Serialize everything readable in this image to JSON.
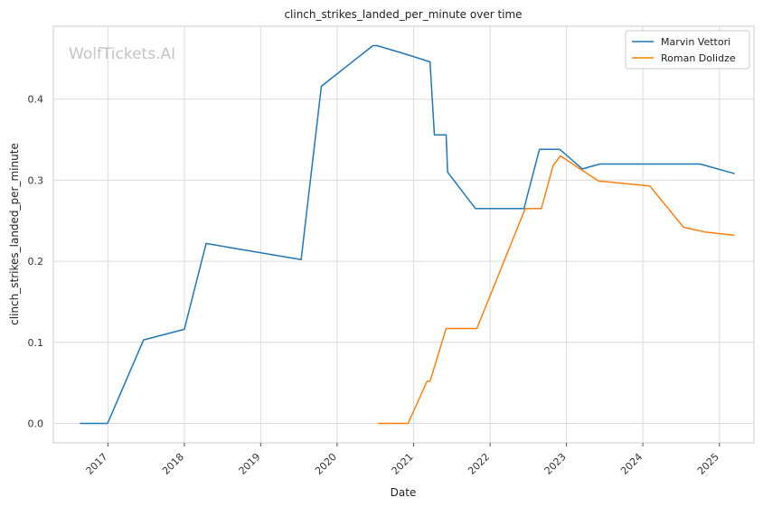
{
  "chart_data": {
    "type": "line",
    "title": "clinch_strikes_landed_per_minute over time",
    "xlabel": "Date",
    "ylabel": "clinch_strikes_landed_per_minute",
    "watermark": "WolfTickets.AI",
    "x_axis": "date",
    "xlim": [
      "2016-04-15",
      "2025-06-15"
    ],
    "ylim": [
      -0.024,
      0.49
    ],
    "x_ticks": [
      "2017",
      "2018",
      "2019",
      "2020",
      "2021",
      "2022",
      "2023",
      "2024",
      "2025"
    ],
    "y_ticks": [
      "0.0",
      "0.1",
      "0.2",
      "0.3",
      "0.4"
    ],
    "y_tick_values": [
      0.0,
      0.1,
      0.2,
      0.3,
      0.4
    ],
    "grid": true,
    "legend_position": "top-right",
    "series": [
      {
        "name": "Marvin Vettori",
        "color": "#1f77b4",
        "points": [
          [
            "2016-08-20",
            0.0
          ],
          [
            "2016-12-30",
            0.0
          ],
          [
            "2017-06-20",
            0.103
          ],
          [
            "2018-01-01",
            0.116
          ],
          [
            "2018-04-15",
            0.222
          ],
          [
            "2019-07-13",
            0.202
          ],
          [
            "2019-10-18",
            0.416
          ],
          [
            "2020-06-20",
            0.466
          ],
          [
            "2020-07-10",
            0.466
          ],
          [
            "2020-12-01",
            0.455
          ],
          [
            "2021-03-20",
            0.446
          ],
          [
            "2021-04-10",
            0.356
          ],
          [
            "2021-06-05",
            0.356
          ],
          [
            "2021-06-12",
            0.31
          ],
          [
            "2021-10-23",
            0.265
          ],
          [
            "2022-06-12",
            0.265
          ],
          [
            "2022-08-25",
            0.338
          ],
          [
            "2022-11-30",
            0.338
          ],
          [
            "2023-03-18",
            0.314
          ],
          [
            "2023-06-10",
            0.32
          ],
          [
            "2024-10-01",
            0.32
          ],
          [
            "2025-03-15",
            0.308
          ]
        ]
      },
      {
        "name": "Roman Dolidze",
        "color": "#ff7f0e",
        "points": [
          [
            "2020-07-15",
            0.0
          ],
          [
            "2020-12-05",
            0.0
          ],
          [
            "2021-03-06",
            0.052
          ],
          [
            "2021-03-20",
            0.052
          ],
          [
            "2021-06-05",
            0.117
          ],
          [
            "2021-10-30",
            0.117
          ],
          [
            "2022-06-18",
            0.265
          ],
          [
            "2022-09-03",
            0.265
          ],
          [
            "2022-10-29",
            0.318
          ],
          [
            "2022-12-03",
            0.33
          ],
          [
            "2023-06-03",
            0.299
          ],
          [
            "2024-02-03",
            0.293
          ],
          [
            "2024-07-13",
            0.242
          ],
          [
            "2024-10-26",
            0.236
          ],
          [
            "2025-03-15",
            0.232
          ]
        ]
      }
    ]
  }
}
